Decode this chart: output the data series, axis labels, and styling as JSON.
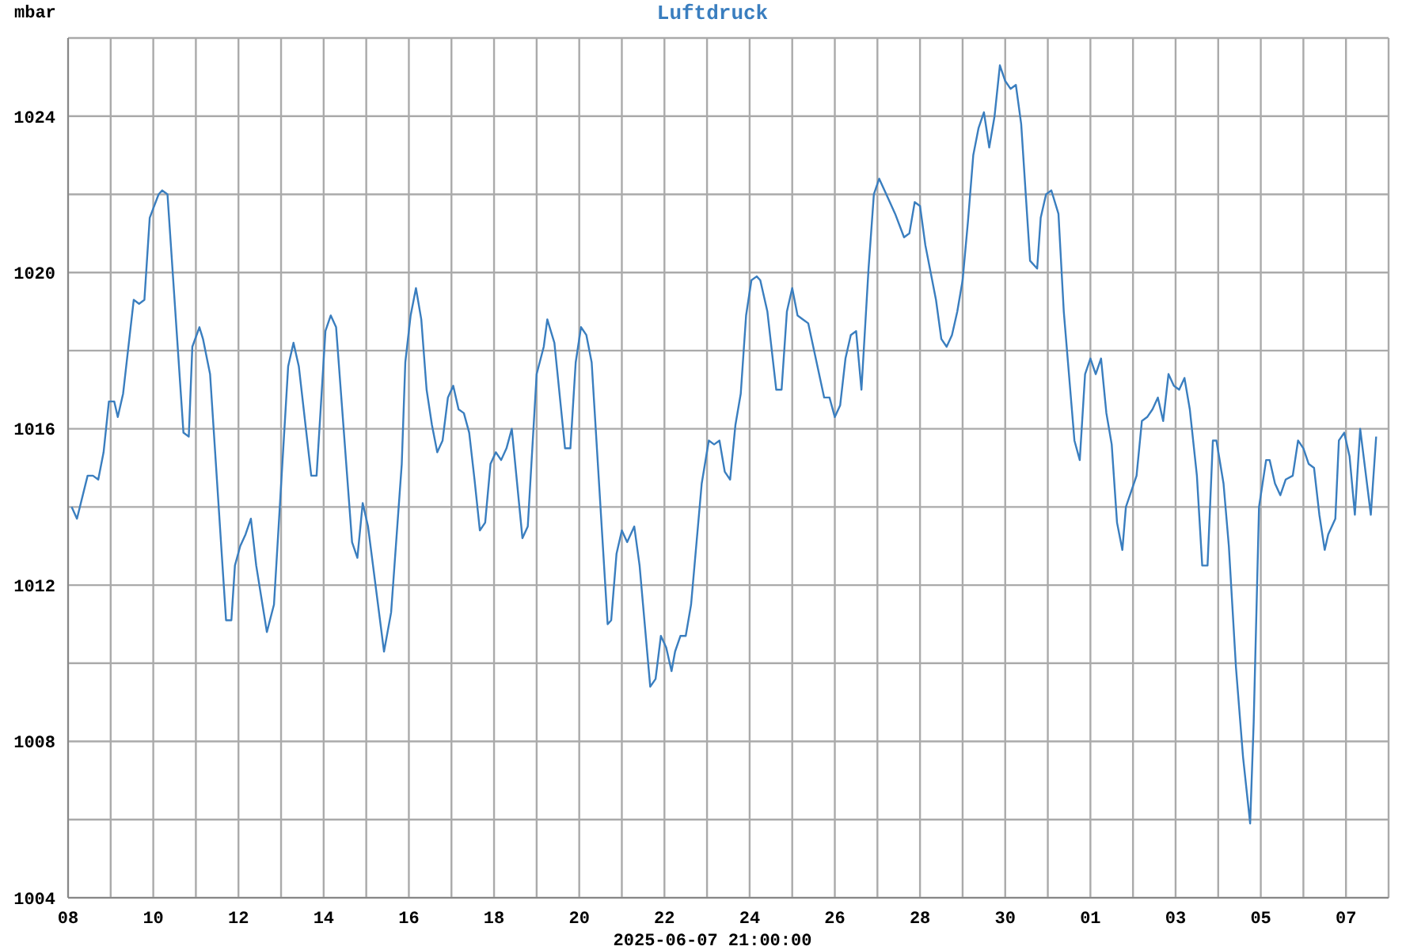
{
  "chart_data": {
    "type": "line",
    "title": "Luftdruck",
    "ylabel": "mbar",
    "annotations": [
      "2025-06-07 21:00:00"
    ],
    "color": "#3a7ebf",
    "grid": true,
    "marker": "none",
    "xlim": [
      "2025-05-08T00:00",
      "2025-06-08T00:00"
    ],
    "xticks": [
      {
        "value": "2025-05-08T00:00",
        "label": "08"
      },
      {
        "value": "2025-05-09T00:00",
        "label": null
      },
      {
        "value": "2025-05-10T00:00",
        "label": "10"
      },
      {
        "value": "2025-05-11T00:00",
        "label": null
      },
      {
        "value": "2025-05-12T00:00",
        "label": "12"
      },
      {
        "value": "2025-05-13T00:00",
        "label": null
      },
      {
        "value": "2025-05-14T00:00",
        "label": "14"
      },
      {
        "value": "2025-05-15T00:00",
        "label": null
      },
      {
        "value": "2025-05-16T00:00",
        "label": "16"
      },
      {
        "value": "2025-05-17T00:00",
        "label": null
      },
      {
        "value": "2025-05-18T00:00",
        "label": "18"
      },
      {
        "value": "2025-05-19T00:00",
        "label": null
      },
      {
        "value": "2025-05-20T00:00",
        "label": "20"
      },
      {
        "value": "2025-05-21T00:00",
        "label": null
      },
      {
        "value": "2025-05-22T00:00",
        "label": "22"
      },
      {
        "value": "2025-05-23T00:00",
        "label": null
      },
      {
        "value": "2025-05-24T00:00",
        "label": "24"
      },
      {
        "value": "2025-05-25T00:00",
        "label": null
      },
      {
        "value": "2025-05-26T00:00",
        "label": "26"
      },
      {
        "value": "2025-05-27T00:00",
        "label": null
      },
      {
        "value": "2025-05-28T00:00",
        "label": "28"
      },
      {
        "value": "2025-05-29T00:00",
        "label": null
      },
      {
        "value": "2025-05-30T00:00",
        "label": "30"
      },
      {
        "value": "2025-05-31T00:00",
        "label": null
      },
      {
        "value": "2025-06-01T00:00",
        "label": "01"
      },
      {
        "value": "2025-06-02T00:00",
        "label": null
      },
      {
        "value": "2025-06-03T00:00",
        "label": "03"
      },
      {
        "value": "2025-06-04T00:00",
        "label": null
      },
      {
        "value": "2025-06-05T00:00",
        "label": "05"
      },
      {
        "value": "2025-06-06T00:00",
        "label": null
      },
      {
        "value": "2025-06-07T00:00",
        "label": "07"
      },
      {
        "value": "2025-06-08T00:00",
        "label": null
      }
    ],
    "ylim": [
      1004,
      1026
    ],
    "yticks": [
      1004,
      {
        "value": 1006,
        "label": null
      },
      1008,
      {
        "value": 1010,
        "label": null
      },
      1012,
      {
        "value": 1014,
        "label": null
      },
      1016,
      {
        "value": 1018,
        "label": null
      },
      1020,
      {
        "value": 1022,
        "label": null
      },
      1024,
      {
        "value": 1026,
        "label": null
      }
    ],
    "x": [
      "2025-05-08T02:00",
      "2025-05-08T05:00",
      "2025-05-08T11:00",
      "2025-05-08T14:00",
      "2025-05-08T17:00",
      "2025-05-08T20:00",
      "2025-05-08T23:00",
      "2025-05-09T02:00",
      "2025-05-09T04:00",
      "2025-05-09T07:00",
      "2025-05-09T13:00",
      "2025-05-09T16:00",
      "2025-05-09T19:00",
      "2025-05-09T22:00",
      "2025-05-10T03:00",
      "2025-05-10T05:00",
      "2025-05-10T08:00",
      "2025-05-10T17:00",
      "2025-05-10T20:00",
      "2025-05-10T22:00",
      "2025-05-11T02:00",
      "2025-05-11T04:00",
      "2025-05-11T08:00",
      "2025-05-11T17:00",
      "2025-05-11T20:00",
      "2025-05-11T22:00",
      "2025-05-12T01:00",
      "2025-05-12T04:00",
      "2025-05-12T07:00",
      "2025-05-12T10:00",
      "2025-05-12T16:00",
      "2025-05-12T20:00",
      "2025-05-13T04:00",
      "2025-05-13T07:00",
      "2025-05-13T10:00",
      "2025-05-13T17:00",
      "2025-05-13T20:00",
      "2025-05-14T01:00",
      "2025-05-14T04:00",
      "2025-05-14T07:00",
      "2025-05-14T16:00",
      "2025-05-14T19:00",
      "2025-05-14T22:00",
      "2025-05-15T01:00",
      "2025-05-15T10:00",
      "2025-05-15T14:00",
      "2025-05-15T20:00",
      "2025-05-15T22:00",
      "2025-05-16T01:00",
      "2025-05-16T04:00",
      "2025-05-16T07:00",
      "2025-05-16T10:00",
      "2025-05-16T13:00",
      "2025-05-16T16:00",
      "2025-05-16T19:00",
      "2025-05-16T22:00",
      "2025-05-17T01:00",
      "2025-05-17T04:00",
      "2025-05-17T07:00",
      "2025-05-17T10:00",
      "2025-05-17T13:00",
      "2025-05-17T16:00",
      "2025-05-17T19:00",
      "2025-05-17T22:00",
      "2025-05-18T01:00",
      "2025-05-18T04:00",
      "2025-05-18T07:00",
      "2025-05-18T10:00",
      "2025-05-18T16:00",
      "2025-05-18T19:00",
      "2025-05-19T00:00",
      "2025-05-19T04:00",
      "2025-05-19T06:00",
      "2025-05-19T10:00",
      "2025-05-19T12:00",
      "2025-05-19T16:00",
      "2025-05-19T19:00",
      "2025-05-19T22:00",
      "2025-05-20T01:00",
      "2025-05-20T04:00",
      "2025-05-20T07:00",
      "2025-05-20T16:00",
      "2025-05-20T18:00",
      "2025-05-20T21:00",
      "2025-05-21T00:00",
      "2025-05-21T03:00",
      "2025-05-21T07:00",
      "2025-05-21T10:00",
      "2025-05-21T16:00",
      "2025-05-21T19:00",
      "2025-05-21T22:00",
      "2025-05-22T01:00",
      "2025-05-22T04:00",
      "2025-05-22T06:00",
      "2025-05-22T09:00",
      "2025-05-22T12:00",
      "2025-05-22T15:00",
      "2025-05-22T21:00",
      "2025-05-23T01:00",
      "2025-05-23T04:00",
      "2025-05-23T07:00",
      "2025-05-23T10:00",
      "2025-05-23T13:00",
      "2025-05-23T16:00",
      "2025-05-23T19:00",
      "2025-05-23T22:00",
      "2025-05-24T01:00",
      "2025-05-24T04:00",
      "2025-05-24T06:00",
      "2025-05-24T10:00",
      "2025-05-24T15:00",
      "2025-05-24T18:00",
      "2025-05-24T21:00",
      "2025-05-25T00:00",
      "2025-05-25T03:00",
      "2025-05-25T06:00",
      "2025-05-25T09:00",
      "2025-05-25T18:00",
      "2025-05-25T21:00",
      "2025-05-26T00:00",
      "2025-05-26T03:00",
      "2025-05-26T06:00",
      "2025-05-26T09:00",
      "2025-05-26T12:00",
      "2025-05-26T15:00",
      "2025-05-26T19:00",
      "2025-05-26T22:00",
      "2025-05-27T01:00",
      "2025-05-27T04:00",
      "2025-05-27T10:00",
      "2025-05-27T15:00",
      "2025-05-27T18:00",
      "2025-05-27T21:00",
      "2025-05-28T00:00",
      "2025-05-28T03:00",
      "2025-05-28T09:00",
      "2025-05-28T12:00",
      "2025-05-28T15:00",
      "2025-05-28T18:00",
      "2025-05-28T21:00",
      "2025-05-29T00:00",
      "2025-05-29T03:00",
      "2025-05-29T06:00",
      "2025-05-29T09:00",
      "2025-05-29T12:00",
      "2025-05-29T15:00",
      "2025-05-29T18:00",
      "2025-05-29T21:00",
      "2025-05-30T00:00",
      "2025-05-30T03:00",
      "2025-05-30T06:00",
      "2025-05-30T09:00",
      "2025-05-30T14:00",
      "2025-05-30T18:00",
      "2025-05-30T20:00",
      "2025-05-30T23:00",
      "2025-05-31T02:00",
      "2025-05-31T06:00",
      "2025-05-31T09:00",
      "2025-05-31T15:00",
      "2025-05-31T18:00",
      "2025-05-31T21:00",
      "2025-06-01T00:00",
      "2025-06-01T03:00",
      "2025-06-01T06:00",
      "2025-06-01T09:00",
      "2025-06-01T12:00",
      "2025-06-01T15:00",
      "2025-06-01T18:00",
      "2025-06-01T20:00",
      "2025-06-01T23:00",
      "2025-06-02T02:00",
      "2025-06-02T05:00",
      "2025-06-02T08:00",
      "2025-06-02T11:00",
      "2025-06-02T14:00",
      "2025-06-02T17:00",
      "2025-06-02T20:00",
      "2025-06-02T23:00",
      "2025-06-03T02:00",
      "2025-06-03T05:00",
      "2025-06-03T08:00",
      "2025-06-03T12:00",
      "2025-06-03T15:00",
      "2025-06-03T18:00",
      "2025-06-03T21:00",
      "2025-06-03T23:00",
      "2025-06-04T03:00",
      "2025-06-04T06:00",
      "2025-06-04T10:00",
      "2025-06-04T14:00",
      "2025-06-04T18:00",
      "2025-06-04T20:00",
      "2025-06-04T23:00",
      "2025-06-05T03:00",
      "2025-06-05T05:00",
      "2025-06-05T08:00",
      "2025-06-05T11:00",
      "2025-06-05T14:00",
      "2025-06-05T18:00",
      "2025-06-05T21:00",
      "2025-06-06T00:00",
      "2025-06-06T03:00",
      "2025-06-06T06:00",
      "2025-06-06T09:00",
      "2025-06-06T12:00",
      "2025-06-06T14:00",
      "2025-06-06T18:00",
      "2025-06-06T20:00",
      "2025-06-06T23:00",
      "2025-06-07T02:00",
      "2025-06-07T05:00",
      "2025-06-07T08:00",
      "2025-06-07T11:00",
      "2025-06-07T14:00",
      "2025-06-07T17:00"
    ],
    "values": [
      1014.0,
      1013.7,
      1014.8,
      1014.8,
      1014.7,
      1015.4,
      1016.7,
      1016.7,
      1016.3,
      1016.9,
      1019.3,
      1019.2,
      1019.3,
      1021.4,
      1022.0,
      1022.1,
      1022.0,
      1015.9,
      1015.8,
      1018.1,
      1018.6,
      1018.3,
      1017.4,
      1011.1,
      1011.1,
      1012.5,
      1013.0,
      1013.3,
      1013.7,
      1012.5,
      1010.8,
      1011.5,
      1017.6,
      1018.2,
      1017.6,
      1014.8,
      1014.8,
      1018.5,
      1018.9,
      1018.6,
      1013.1,
      1012.7,
      1014.1,
      1013.5,
      1010.3,
      1011.3,
      1015.1,
      1017.7,
      1018.9,
      1019.6,
      1018.8,
      1017.0,
      1016.1,
      1015.4,
      1015.7,
      1016.8,
      1017.1,
      1016.5,
      1016.4,
      1015.9,
      1014.7,
      1013.4,
      1013.6,
      1015.1,
      1015.4,
      1015.2,
      1015.5,
      1016.0,
      1013.2,
      1013.5,
      1017.4,
      1018.1,
      1018.8,
      1018.2,
      1017.3,
      1015.5,
      1015.5,
      1017.7,
      1018.6,
      1018.4,
      1017.7,
      1011.0,
      1011.1,
      1012.8,
      1013.4,
      1013.1,
      1013.5,
      1012.5,
      1009.4,
      1009.6,
      1010.7,
      1010.4,
      1009.8,
      1010.3,
      1010.7,
      1010.7,
      1011.5,
      1014.6,
      1015.7,
      1015.6,
      1015.7,
      1014.9,
      1014.7,
      1016.1,
      1016.9,
      1018.9,
      1019.8,
      1019.9,
      1019.8,
      1019.0,
      1017.0,
      1017.0,
      1019.0,
      1019.6,
      1018.9,
      1018.8,
      1018.7,
      1016.8,
      1016.8,
      1016.3,
      1016.6,
      1017.8,
      1018.4,
      1018.5,
      1017.0,
      1020.1,
      1022.0,
      1022.4,
      1022.1,
      1021.5,
      1020.9,
      1021.0,
      1021.8,
      1021.7,
      1020.7,
      1019.3,
      1018.3,
      1018.1,
      1018.4,
      1019.0,
      1019.8,
      1021.3,
      1023.0,
      1023.7,
      1024.1,
      1023.2,
      1024.0,
      1025.3,
      1024.9,
      1024.7,
      1024.8,
      1023.8,
      1020.3,
      1020.1,
      1021.4,
      1022.0,
      1022.1,
      1021.5,
      1019.0,
      1015.7,
      1015.2,
      1017.4,
      1017.8,
      1017.4,
      1017.8,
      1016.4,
      1015.6,
      1013.6,
      1012.9,
      1014.0,
      1014.4,
      1014.8,
      1016.2,
      1016.3,
      1016.5,
      1016.8,
      1016.2,
      1017.4,
      1017.1,
      1017.0,
      1017.3,
      1016.5,
      1014.8,
      1012.5,
      1012.5,
      1015.7,
      1015.7,
      1014.6,
      1013.0,
      1009.9,
      1007.6,
      1005.9,
      1008.5,
      1014.0,
      1015.2,
      1015.2,
      1014.6,
      1014.3,
      1014.7,
      1014.8,
      1015.7,
      1015.5,
      1015.1,
      1015.0,
      1013.8,
      1012.9,
      1013.3,
      1013.7,
      1015.7,
      1015.9,
      1015.3,
      1013.8,
      1016.0,
      1014.9,
      1013.8,
      1015.8
    ]
  }
}
